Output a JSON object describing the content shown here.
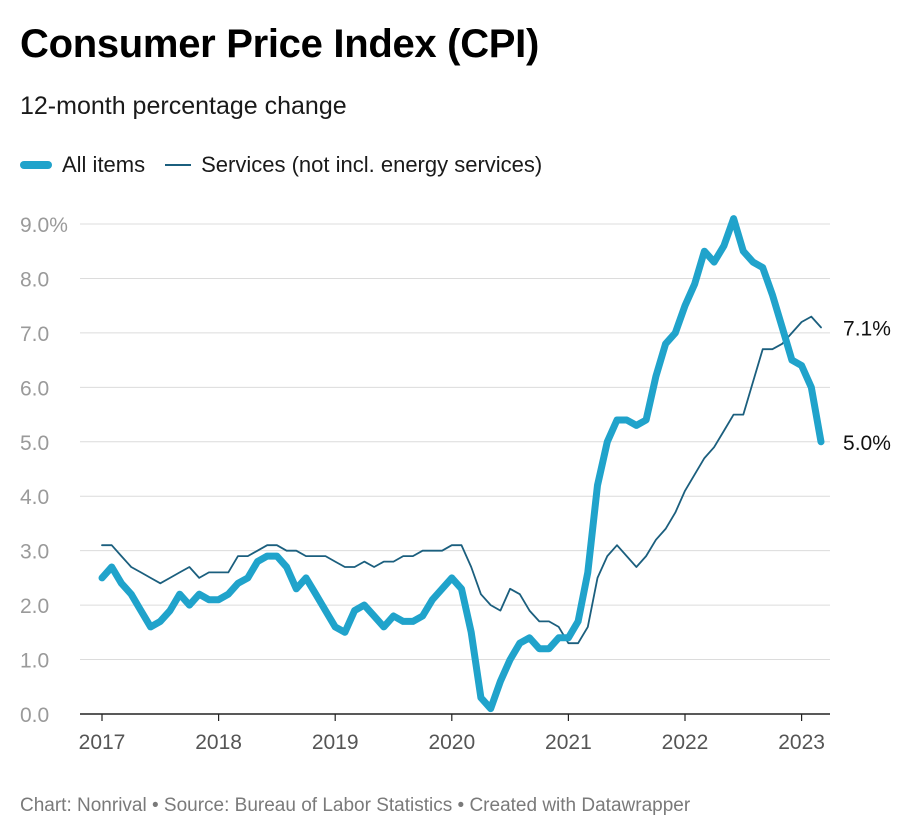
{
  "title": "Consumer Price Index (CPI)",
  "subtitle": "12-month percentage change",
  "footer": "Chart: Nonrival • Source: Bureau of Labor Statistics • Created with Datawrapper",
  "colors": {
    "all_items": "#20a3cb",
    "services": "#1b5f7e",
    "grid": "#dcdcdc",
    "axis_text": "#9a9a9a"
  },
  "chart_data": {
    "type": "line",
    "xlabel": "",
    "ylabel": "",
    "ylim": [
      0,
      9
    ],
    "y_ticks": [
      {
        "value": 9,
        "label": "9.0%"
      },
      {
        "value": 8,
        "label": "8.0"
      },
      {
        "value": 7,
        "label": "7.0"
      },
      {
        "value": 6,
        "label": "6.0"
      },
      {
        "value": 5,
        "label": "5.0"
      },
      {
        "value": 4,
        "label": "4.0"
      },
      {
        "value": 3,
        "label": "3.0"
      },
      {
        "value": 2,
        "label": "2.0"
      },
      {
        "value": 1,
        "label": "1.0"
      },
      {
        "value": 0,
        "label": "0.0"
      }
    ],
    "x_ticks": [
      "2017",
      "2018",
      "2019",
      "2020",
      "2021",
      "2022",
      "2023"
    ],
    "x": [
      "2017-01",
      "2017-02",
      "2017-03",
      "2017-04",
      "2017-05",
      "2017-06",
      "2017-07",
      "2017-08",
      "2017-09",
      "2017-10",
      "2017-11",
      "2017-12",
      "2018-01",
      "2018-02",
      "2018-03",
      "2018-04",
      "2018-05",
      "2018-06",
      "2018-07",
      "2018-08",
      "2018-09",
      "2018-10",
      "2018-11",
      "2018-12",
      "2019-01",
      "2019-02",
      "2019-03",
      "2019-04",
      "2019-05",
      "2019-06",
      "2019-07",
      "2019-08",
      "2019-09",
      "2019-10",
      "2019-11",
      "2019-12",
      "2020-01",
      "2020-02",
      "2020-03",
      "2020-04",
      "2020-05",
      "2020-06",
      "2020-07",
      "2020-08",
      "2020-09",
      "2020-10",
      "2020-11",
      "2020-12",
      "2021-01",
      "2021-02",
      "2021-03",
      "2021-04",
      "2021-05",
      "2021-06",
      "2021-07",
      "2021-08",
      "2021-09",
      "2021-10",
      "2021-11",
      "2021-12",
      "2022-01",
      "2022-02",
      "2022-03",
      "2022-04",
      "2022-05",
      "2022-06",
      "2022-07",
      "2022-08",
      "2022-09",
      "2022-10",
      "2022-11",
      "2022-12",
      "2023-01",
      "2023-02",
      "2023-03"
    ],
    "series": [
      {
        "name": "All items",
        "end_label": "5.0%",
        "values": [
          2.5,
          2.7,
          2.4,
          2.2,
          1.9,
          1.6,
          1.7,
          1.9,
          2.2,
          2.0,
          2.2,
          2.1,
          2.1,
          2.2,
          2.4,
          2.5,
          2.8,
          2.9,
          2.9,
          2.7,
          2.3,
          2.5,
          2.2,
          1.9,
          1.6,
          1.5,
          1.9,
          2.0,
          1.8,
          1.6,
          1.8,
          1.7,
          1.7,
          1.8,
          2.1,
          2.3,
          2.5,
          2.3,
          1.5,
          0.3,
          0.1,
          0.6,
          1.0,
          1.3,
          1.4,
          1.2,
          1.2,
          1.4,
          1.4,
          1.7,
          2.6,
          4.2,
          5.0,
          5.4,
          5.4,
          5.3,
          5.4,
          6.2,
          6.8,
          7.0,
          7.5,
          7.9,
          8.5,
          8.3,
          8.6,
          9.1,
          8.5,
          8.3,
          8.2,
          7.7,
          7.1,
          6.5,
          6.4,
          6.0,
          5.0
        ]
      },
      {
        "name": "Services (not incl. energy services)",
        "end_label": "7.1%",
        "values": [
          3.1,
          3.1,
          2.9,
          2.7,
          2.6,
          2.5,
          2.4,
          2.5,
          2.6,
          2.7,
          2.5,
          2.6,
          2.6,
          2.6,
          2.9,
          2.9,
          3.0,
          3.1,
          3.1,
          3.0,
          3.0,
          2.9,
          2.9,
          2.9,
          2.8,
          2.7,
          2.7,
          2.8,
          2.7,
          2.8,
          2.8,
          2.9,
          2.9,
          3.0,
          3.0,
          3.0,
          3.1,
          3.1,
          2.7,
          2.2,
          2.0,
          1.9,
          2.3,
          2.2,
          1.9,
          1.7,
          1.7,
          1.6,
          1.3,
          1.3,
          1.6,
          2.5,
          2.9,
          3.1,
          2.9,
          2.7,
          2.9,
          3.2,
          3.4,
          3.7,
          4.1,
          4.4,
          4.7,
          4.9,
          5.2,
          5.5,
          5.5,
          6.1,
          6.7,
          6.7,
          6.8,
          7.0,
          7.2,
          7.3,
          7.1
        ]
      }
    ]
  }
}
